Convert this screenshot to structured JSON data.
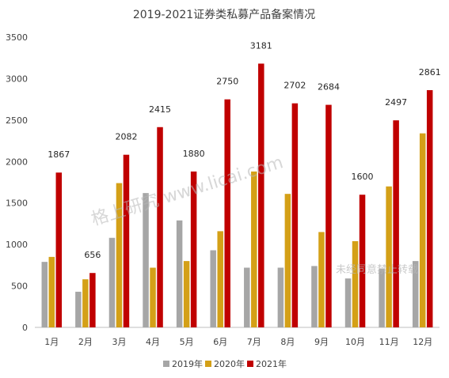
{
  "chart_data": {
    "type": "bar",
    "title": "2019-2021证券类私募产品备案情况",
    "categories": [
      "1月",
      "2月",
      "3月",
      "4月",
      "5月",
      "6月",
      "7月",
      "8月",
      "9月",
      "10月",
      "11月",
      "12月"
    ],
    "series": [
      {
        "name": "2019年",
        "color": "#a6a6a6",
        "values": [
          790,
          430,
          1080,
          1620,
          1290,
          930,
          720,
          720,
          740,
          590,
          710,
          800
        ]
      },
      {
        "name": "2020年",
        "color": "#d4a017",
        "values": [
          850,
          580,
          1740,
          720,
          800,
          1160,
          1880,
          1610,
          1150,
          1040,
          1700,
          2340
        ]
      },
      {
        "name": "2021年",
        "color": "#c00000",
        "values": [
          1867,
          656,
          2082,
          2415,
          1880,
          2750,
          3181,
          2702,
          2684,
          1600,
          2497,
          2861
        ]
      }
    ],
    "data_labels": [
      "1867",
      "656",
      "2082",
      "2415",
      "1880",
      "2750",
      "3181",
      "2702",
      "2684",
      "1600",
      "2497",
      "2861"
    ],
    "ylim": [
      0,
      3500
    ],
    "yticks": [
      "0",
      "500",
      "1000",
      "1500",
      "2000",
      "2500",
      "3000",
      "3500"
    ],
    "grid": false,
    "legend_position": "bottom"
  },
  "watermark": {
    "main": "格上研究  www.licai.com",
    "note": "未经同意禁止转载"
  }
}
